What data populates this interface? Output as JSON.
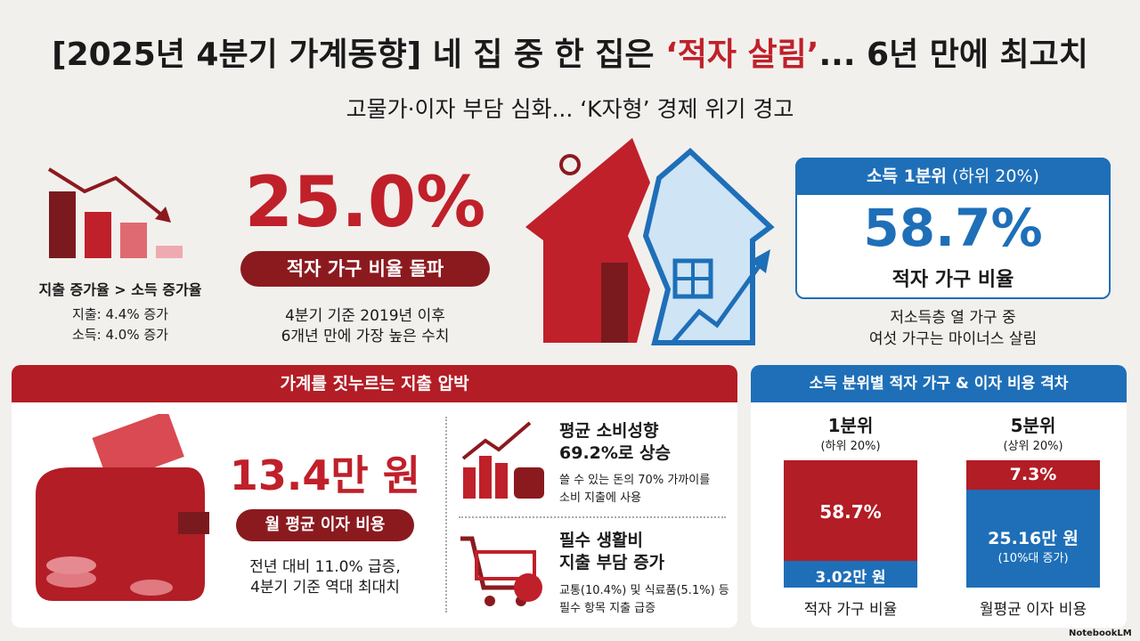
{
  "header": {
    "title_parts": [
      "[2025년 4분기 가계동향] 네 집 중 한 집은 ",
      "‘적자 살림’",
      "... 6년 만에 최고치"
    ],
    "subtitle": "고물가·이자 부담 심화... ‘K자형’ 경제 위기 경고"
  },
  "top_left": {
    "caption": "지출 증가율 > 소득 증가율",
    "lines": [
      "지출: 4.4% 증가",
      "소득: 4.0% 증가"
    ]
  },
  "headline": {
    "value": "25.0%",
    "badge": "적자 가구 비율 돌파",
    "note": [
      "4분기 기준 2019년 이후",
      "6개년 만에 가장 높은 수치"
    ]
  },
  "quintile_card": {
    "header": "소득 1분위",
    "header_sub": "(하위 20%)",
    "value": "58.7%",
    "label": "적자 가구 비율",
    "note": [
      "저소득층 열 가구 중",
      "여섯 가구는 마이너스 살림"
    ]
  },
  "expense": {
    "title": "가계를 짓누르는 지출 압박",
    "value": "13.4만 원",
    "badge": "월 평균 이자 비용",
    "note": [
      "전년 대비 11.0% 급증,",
      "4분기 기준 역대 최대치"
    ],
    "items": [
      {
        "title": [
          "평균 소비성향",
          "69.2%로 상승"
        ],
        "desc": [
          "쓸 수 있는 돈의 70% 가까이를",
          "소비 지출에 사용"
        ]
      },
      {
        "title": [
          "필수 생활비",
          "지출 부담 증가"
        ],
        "desc": [
          "교통(10.4%) 및 식료품(5.1%) 등",
          "필수 항목 지출 급증"
        ]
      }
    ]
  },
  "compare": {
    "title": "소득 분위별 적자 가구 & 이자 비용 격차",
    "groups": [
      {
        "name": "1분위",
        "sub": "(하위 20%)",
        "top": "58.7%",
        "bottom": "3.02만 원",
        "label": "적자 가구 비율"
      },
      {
        "name": "5분위",
        "sub": "(상위 20%)",
        "top": "7.3%",
        "bottom": "25.16만 원",
        "bottom_sub": "(10%대 증가)",
        "label": "월평균 이자 비용"
      }
    ]
  },
  "footer": {
    "brand": "NotebookLM"
  }
}
